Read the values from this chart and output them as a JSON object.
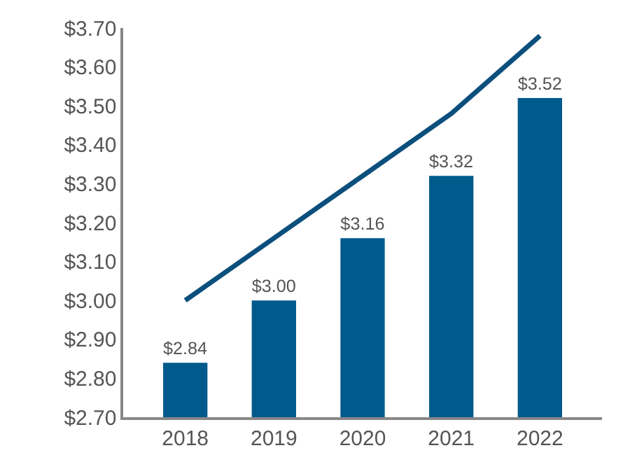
{
  "chart_data": {
    "type": "bar",
    "categories": [
      "2018",
      "2019",
      "2020",
      "2021",
      "2022"
    ],
    "series": [
      {
        "color": "#005a8c",
        "values": [
          2.84,
          3.0,
          3.16,
          3.32,
          3.52
        ],
        "value_labels": [
          "$2.84",
          "$3.00",
          "$3.16",
          "$3.32",
          "$3.52"
        ]
      },
      {
        "type": "line",
        "color": "#0b4f7c",
        "values": [
          3.0,
          3.16,
          3.32,
          3.48,
          3.68
        ],
        "marker": "none",
        "line_style": "solid"
      }
    ],
    "ylim": [
      2.7,
      3.7
    ],
    "yticks": [
      {
        "value": 2.7,
        "label": "$2.70"
      },
      {
        "value": 2.8,
        "label": "$2.80"
      },
      {
        "value": 2.9,
        "label": "$2.90"
      },
      {
        "value": 3.0,
        "label": "$3.00"
      },
      {
        "value": 3.1,
        "label": "$3.10"
      },
      {
        "value": 3.2,
        "label": "$3.20"
      },
      {
        "value": 3.3,
        "label": "$3.30"
      },
      {
        "value": 3.4,
        "label": "$3.40"
      },
      {
        "value": 3.5,
        "label": "$3.50"
      },
      {
        "value": 3.6,
        "label": "$3.60"
      },
      {
        "value": 3.7,
        "label": "$3.70"
      }
    ]
  }
}
